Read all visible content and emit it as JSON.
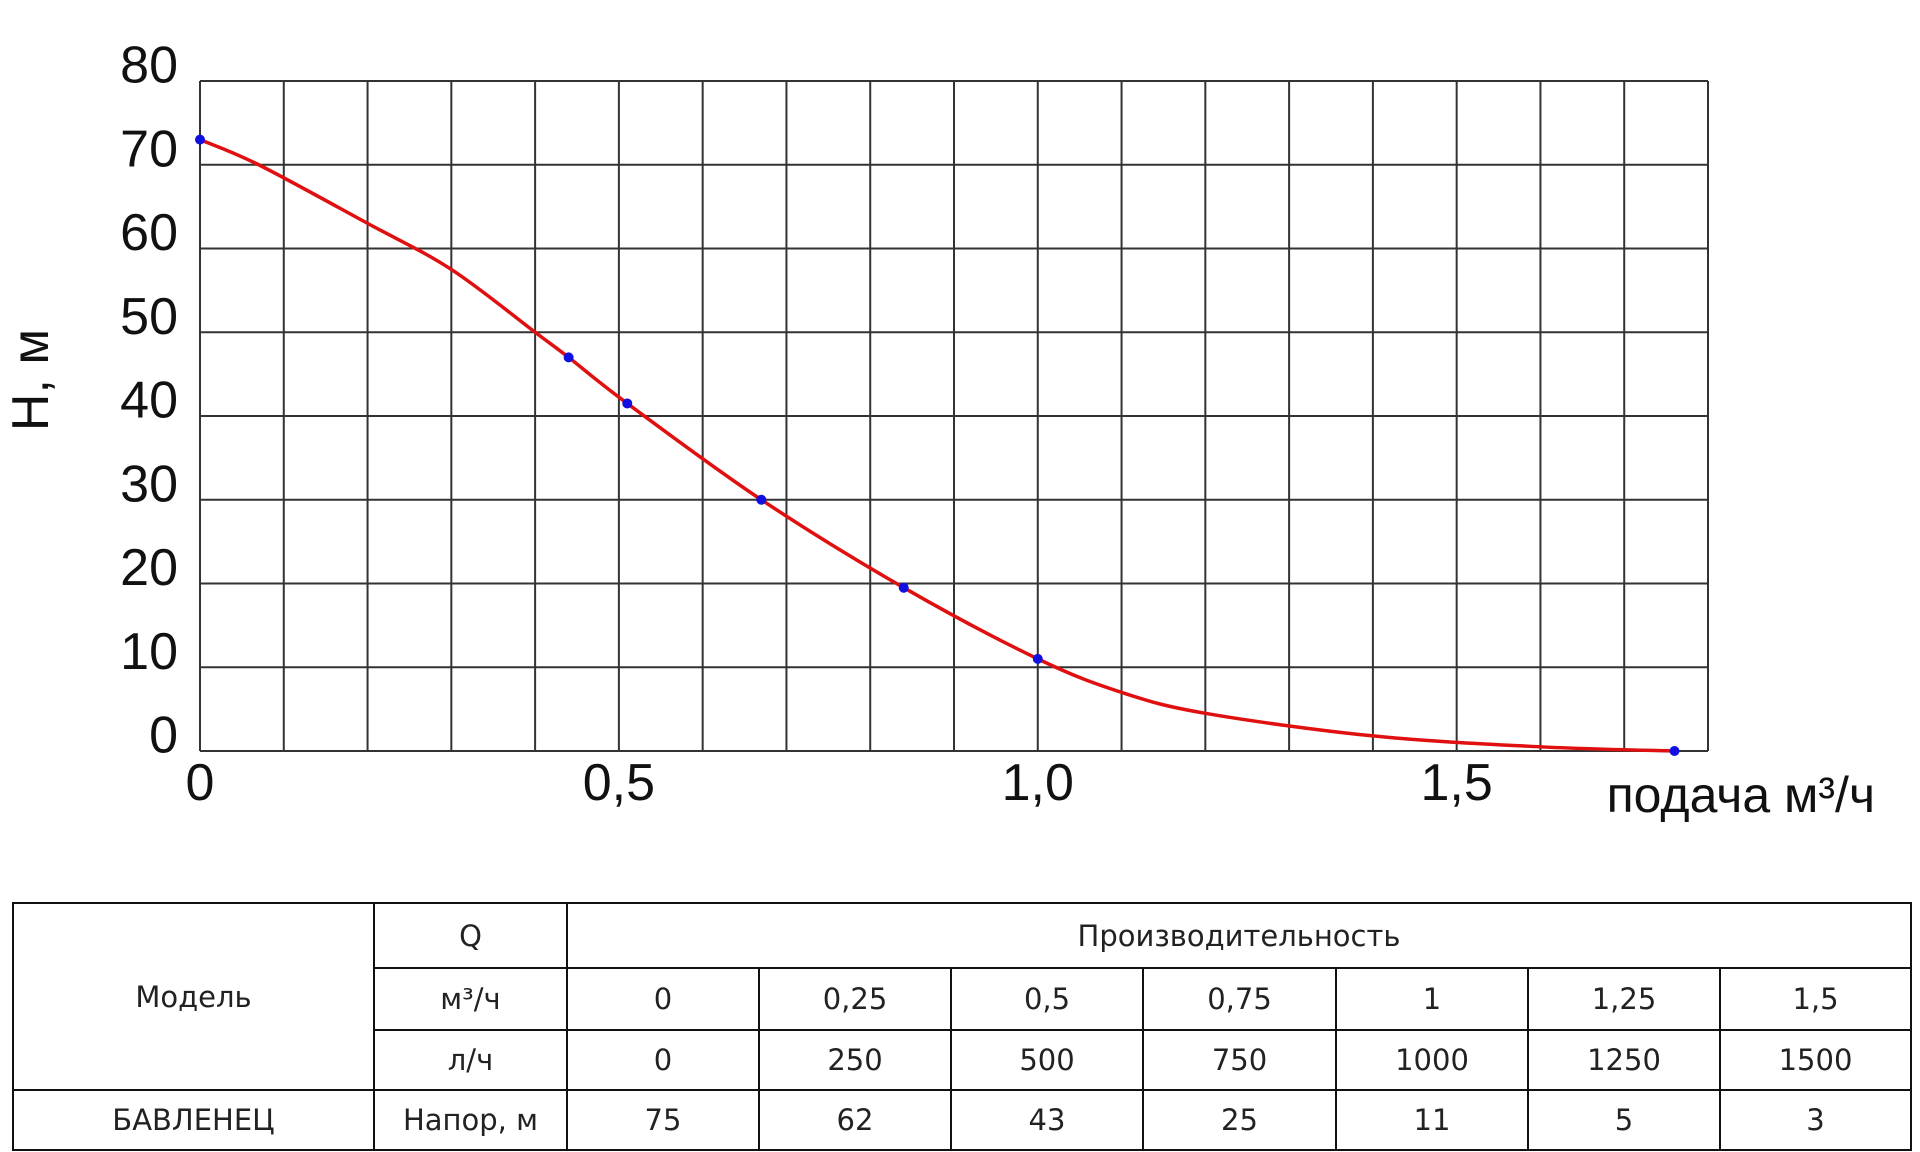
{
  "chart_data": {
    "type": "line",
    "ylabel": "Н,  м",
    "xlabel": "подача  м³/ч",
    "xlim": [
      0,
      1.8
    ],
    "ylim": [
      0,
      80
    ],
    "xticks": [
      0,
      {
        "value": 0.5,
        "label": "0,5"
      },
      {
        "value": 1.0,
        "label": "1,0"
      },
      {
        "value": 1.5,
        "label": "1,5"
      }
    ],
    "yticks": [
      0,
      10,
      20,
      30,
      40,
      50,
      60,
      70,
      80
    ],
    "xgrid": [
      0,
      0.1,
      0.2,
      0.3,
      0.4,
      0.5,
      0.6,
      0.7,
      0.8,
      0.9,
      1.0,
      1.1,
      1.2,
      1.3,
      1.4,
      1.5,
      1.6,
      1.7,
      1.8
    ],
    "grid": true,
    "series": [
      {
        "color": "#e01010",
        "style": "curve",
        "x": [
          0,
          0.07,
          0.2,
          0.3,
          0.4,
          0.44,
          0.51,
          0.67,
          0.84,
          1.0,
          1.1,
          1.2,
          1.4,
          1.6,
          1.76
        ],
        "values": [
          73,
          70,
          63,
          57.5,
          50,
          47,
          41.5,
          30,
          19.5,
          11,
          7,
          4.5,
          1.8,
          0.5,
          0
        ]
      },
      {
        "color": "#1010e0",
        "style": "points",
        "x": [
          0,
          0.44,
          0.51,
          0.67,
          0.84,
          1.0,
          1.76
        ],
        "values": [
          73,
          47,
          41.5,
          30,
          19.5,
          11,
          0
        ]
      }
    ]
  },
  "table": {
    "model_header": "Модель",
    "q_header": "Q",
    "perf_header": "Производительность",
    "unit_m3": "м³/ч",
    "m3_values": [
      "0",
      "0,25",
      "0,5",
      "0,75",
      "1",
      "1,25",
      "1,5"
    ],
    "unit_l": "л/ч",
    "l_values": [
      "0",
      "250",
      "500",
      "750",
      "1000",
      "1250",
      "1500"
    ],
    "model": "БАВЛЕНЕЦ",
    "head_label": "Напор, м",
    "head_values": [
      "75",
      "62",
      "43",
      "25",
      "11",
      "5",
      "3"
    ]
  }
}
